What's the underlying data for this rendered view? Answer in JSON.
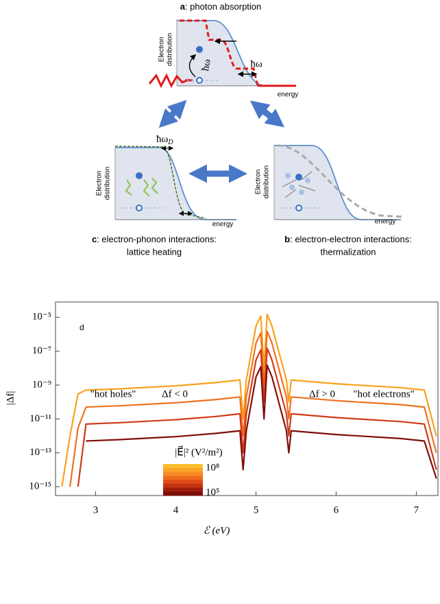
{
  "diagram": {
    "panel_a": {
      "letter": "a",
      "caption": ": photon absorption",
      "y_label": [
        "Electron",
        "distribution"
      ],
      "x_label": "energy",
      "arrow_label": "ħω",
      "step_label": "ħω"
    },
    "panel_c": {
      "letter": "c",
      "caption": [
        ": electron-phonon interactions:",
        "lattice heating"
      ],
      "y_label": [
        "Electron",
        "distribution"
      ],
      "x_label": "energy",
      "shift_label": "ħω",
      "shift_sub": "D"
    },
    "panel_b": {
      "letter": "b",
      "caption": [
        ": electron-electron interactions:",
        "thermalization"
      ],
      "y_label": [
        "Electron",
        "distribution"
      ],
      "x_label": "energy"
    }
  },
  "chart_data": {
    "type": "line",
    "panel_label": "d",
    "x_label": "ℰ (eV)",
    "y_label": "|Δf|",
    "y_scale": "log",
    "xlim": [
      2.5,
      7.27
    ],
    "xticks": [
      3,
      4,
      5,
      6,
      7
    ],
    "ylim": [
      3e-16,
      8e-05
    ],
    "yticks": [
      {
        "value": 1e-05,
        "label": "10⁻⁵"
      },
      {
        "value": 1e-07,
        "label": "10⁻⁷"
      },
      {
        "value": 1e-09,
        "label": "10⁻⁹"
      },
      {
        "value": 1e-11,
        "label": "10⁻¹¹"
      },
      {
        "value": 1e-13,
        "label": "10⁻¹³"
      },
      {
        "value": 1e-15,
        "label": "10⁻¹⁵"
      }
    ],
    "annotations": [
      "\"hot holes\"",
      "Δf < 0",
      "Δf > 0",
      "\"hot electrons\""
    ],
    "x": [
      2.58,
      2.68,
      2.78,
      2.88,
      3.3,
      4.0,
      4.5,
      4.8,
      4.84,
      4.88,
      5.0,
      5.06,
      5.1,
      5.14,
      5.2,
      5.38,
      5.41,
      5.44,
      6.0,
      6.8,
      7.1,
      7.25
    ],
    "series": [
      {
        "color": "#f9a11b",
        "values": [
          1e-15,
          1e-12,
          3e-10,
          5e-10,
          6e-10,
          9e-10,
          1.4e-09,
          2e-09,
          1e-11,
          2e-09,
          3e-06,
          1.2e-05,
          1e-08,
          1.5e-05,
          3e-06,
          2e-09,
          1e-10,
          2e-09,
          1.2e-09,
          7e-10,
          5e-10,
          1e-12
        ]
      },
      {
        "color": "#f0701e",
        "values": [
          null,
          1e-15,
          3e-12,
          5e-11,
          6e-11,
          9e-11,
          1.4e-10,
          2e-10,
          1e-12,
          2e-10,
          3e-07,
          1.2e-06,
          1e-09,
          1.5e-06,
          3e-07,
          2e-10,
          1e-11,
          2e-10,
          1.2e-10,
          7e-11,
          5e-11,
          1e-13
        ]
      },
      {
        "color": "#cf3a16",
        "values": [
          null,
          null,
          1e-15,
          5e-12,
          6e-12,
          9e-12,
          1.4e-11,
          2e-11,
          1e-13,
          2e-11,
          3e-08,
          1.2e-07,
          1e-10,
          1.5e-07,
          3e-08,
          2e-11,
          1e-12,
          2e-11,
          1.2e-11,
          7e-12,
          5e-12,
          1e-14
        ]
      },
      {
        "color": "#7f0e0a",
        "values": [
          null,
          null,
          null,
          5e-13,
          6e-13,
          9e-13,
          1.4e-12,
          2e-12,
          1e-14,
          2e-12,
          3e-09,
          1.2e-08,
          1e-11,
          1.5e-08,
          3e-09,
          2e-12,
          1e-13,
          2e-12,
          1.2e-12,
          7e-13,
          5e-13,
          3e-15
        ]
      }
    ],
    "colorbar": {
      "label": "|E⃗|² (V²/m²)",
      "tick_labels": [
        "10⁸",
        "10⁵"
      ],
      "colors": [
        "#fbc02d",
        "#fba42a",
        "#f78a24",
        "#f06a1e",
        "#e04c18",
        "#c33313",
        "#a01d0e",
        "#7f0e0a"
      ]
    }
  }
}
